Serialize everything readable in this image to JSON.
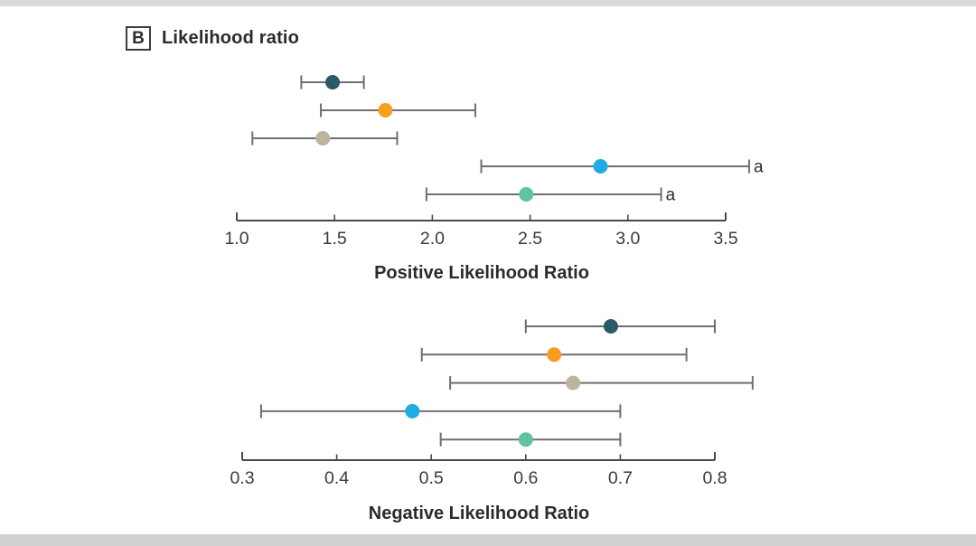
{
  "figure": {
    "panel_label": "B",
    "panel_title": "Likelihood ratio",
    "footnote_marker": "a"
  },
  "palette": {
    "dark_teal": "#2C5968",
    "orange": "#F89D1E",
    "tan": "#BDB49D",
    "light_blue": "#1FACE4",
    "green": "#5FC2A0",
    "error_bar": "#6F6F6F",
    "axis": "#4A4A4A",
    "text": "#3A3A3A"
  },
  "chart_data": [
    {
      "type": "scatter",
      "subtype": "forest-plot-horizontal-ci",
      "title": "Positive Likelihood Ratio",
      "xlabel": "Positive Likelihood Ratio",
      "ylabel": "",
      "xlim": [
        1.0,
        3.5
      ],
      "xticks": [
        "1.0",
        "1.5",
        "2.0",
        "2.5",
        "3.0",
        "3.5"
      ],
      "grid": false,
      "legend": "none",
      "series": [
        {
          "name": "dark-teal-marker",
          "color": "dark_teal",
          "value": 1.49,
          "ci_low": 1.33,
          "ci_high": 1.65,
          "footnote": false
        },
        {
          "name": "orange-marker",
          "color": "orange",
          "value": 1.76,
          "ci_low": 1.43,
          "ci_high": 2.22,
          "footnote": false
        },
        {
          "name": "tan-marker",
          "color": "tan",
          "value": 1.44,
          "ci_low": 1.08,
          "ci_high": 1.82,
          "footnote": false
        },
        {
          "name": "light-blue-marker",
          "color": "light_blue",
          "value": 2.86,
          "ci_low": 2.25,
          "ci_high": 3.62,
          "footnote": true
        },
        {
          "name": "green-marker",
          "color": "green",
          "value": 2.48,
          "ci_low": 1.97,
          "ci_high": 3.17,
          "footnote": true
        }
      ]
    },
    {
      "type": "scatter",
      "subtype": "forest-plot-horizontal-ci",
      "title": "Negative Likelihood Ratio",
      "xlabel": "Negative Likelihood Ratio",
      "ylabel": "",
      "xlim": [
        0.3,
        0.8
      ],
      "xticks": [
        "0.3",
        "0.4",
        "0.5",
        "0.6",
        "0.7",
        "0.8"
      ],
      "grid": false,
      "legend": "none",
      "series": [
        {
          "name": "dark-teal-marker",
          "color": "dark_teal",
          "value": 0.69,
          "ci_low": 0.6,
          "ci_high": 0.8,
          "footnote": false
        },
        {
          "name": "orange-marker",
          "color": "orange",
          "value": 0.63,
          "ci_low": 0.49,
          "ci_high": 0.77,
          "footnote": false
        },
        {
          "name": "tan-marker",
          "color": "tan",
          "value": 0.65,
          "ci_low": 0.52,
          "ci_high": 0.84,
          "footnote": false
        },
        {
          "name": "light-blue-marker",
          "color": "light_blue",
          "value": 0.48,
          "ci_low": 0.32,
          "ci_high": 0.7,
          "footnote": false
        },
        {
          "name": "green-marker",
          "color": "green",
          "value": 0.6,
          "ci_low": 0.51,
          "ci_high": 0.7,
          "footnote": false
        }
      ]
    }
  ]
}
